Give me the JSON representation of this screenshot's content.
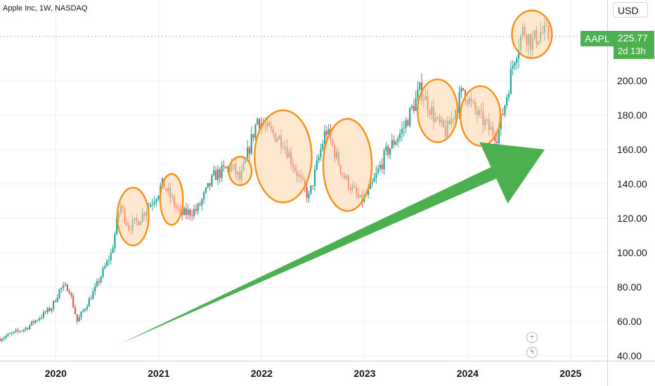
{
  "header": {
    "title": "Apple Inc, 1W, NASDAQ"
  },
  "price_axis": {
    "currency": "USD"
  },
  "last_price": {
    "symbol": "AAPL",
    "price": "225.77",
    "countdown": "2d 13h"
  },
  "colors": {
    "up": "#26a69a",
    "down": "#ef5350",
    "highlight_fill": "#fdd7aa",
    "highlight_stroke": "#f7931e",
    "arrow": "#4caf50",
    "grid": "#eceff2"
  },
  "icons": {
    "add": "plus-icon",
    "alert": "lightning-icon"
  },
  "chart_data": {
    "type": "candlestick",
    "title": "Apple Inc, 1W, NASDAQ",
    "y_ticks": [
      "40.00",
      "60.00",
      "80.00",
      "100.00",
      "120.00",
      "140.00",
      "160.00",
      "180.00",
      "200.00"
    ],
    "ylim": [
      40,
      240
    ],
    "x_ticks": [
      "2020",
      "2021",
      "2022",
      "2023",
      "2024",
      "2025"
    ],
    "xlim": [
      "2019-06",
      "2025-10"
    ],
    "series_close_path": [
      [
        "2019-06",
        50
      ],
      [
        "2019-09",
        56
      ],
      [
        "2019-12",
        68
      ],
      [
        "2020-01",
        79
      ],
      [
        "2020-02",
        80
      ],
      [
        "2020-03",
        60
      ],
      [
        "2020-05",
        78
      ],
      [
        "2020-07",
        100
      ],
      [
        "2020-08",
        128
      ],
      [
        "2020-09",
        115
      ],
      [
        "2020-10",
        118
      ],
      [
        "2020-12",
        132
      ],
      [
        "2021-01",
        140
      ],
      [
        "2021-03",
        122
      ],
      [
        "2021-05",
        125
      ],
      [
        "2021-07",
        145
      ],
      [
        "2021-09",
        150
      ],
      [
        "2021-10",
        142
      ],
      [
        "2021-12",
        178
      ],
      [
        "2022-01",
        172
      ],
      [
        "2022-03",
        165
      ],
      [
        "2022-05",
        142
      ],
      [
        "2022-06",
        132
      ],
      [
        "2022-08",
        172
      ],
      [
        "2022-10",
        145
      ],
      [
        "2022-12",
        130
      ],
      [
        "2023-01",
        135
      ],
      [
        "2023-03",
        158
      ],
      [
        "2023-05",
        172
      ],
      [
        "2023-07",
        195
      ],
      [
        "2023-09",
        175
      ],
      [
        "2023-10",
        170
      ],
      [
        "2023-12",
        195
      ],
      [
        "2024-01",
        185
      ],
      [
        "2024-03",
        172
      ],
      [
        "2024-04",
        168
      ],
      [
        "2024-05",
        190
      ],
      [
        "2024-06",
        215
      ],
      [
        "2024-07",
        230
      ],
      [
        "2024-08",
        222
      ],
      [
        "2024-09",
        228
      ],
      [
        "2024-10",
        225.77
      ]
    ],
    "highlights": [
      {
        "from": "2020-08",
        "to": "2020-11",
        "low": 105,
        "high": 137
      },
      {
        "from": "2021-01",
        "to": "2021-03",
        "low": 117,
        "high": 145
      },
      {
        "from": "2021-09",
        "to": "2021-11",
        "low": 140,
        "high": 155
      },
      {
        "from": "2021-12",
        "to": "2022-06",
        "low": 130,
        "high": 182
      },
      {
        "from": "2022-08",
        "to": "2023-01",
        "low": 125,
        "high": 177
      },
      {
        "from": "2023-07",
        "to": "2023-11",
        "low": 165,
        "high": 200
      },
      {
        "from": "2023-12",
        "to": "2024-04",
        "low": 163,
        "high": 196
      },
      {
        "from": "2024-06",
        "to": "2024-10",
        "low": 214,
        "high": 240
      }
    ],
    "trend_arrow": {
      "from": [
        "2020-08",
        47
      ],
      "to": [
        "2024-09",
        160
      ]
    },
    "last_value": 225.77
  }
}
